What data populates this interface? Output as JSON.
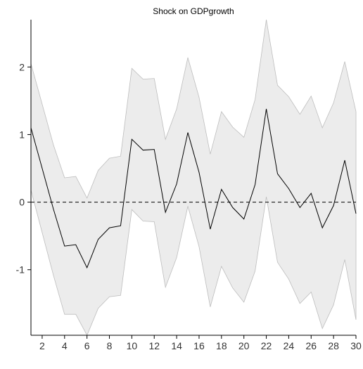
{
  "chart_data": {
    "type": "area",
    "title": "Shock on GDPgrowth",
    "xlabel": "",
    "ylabel": "",
    "xlim": [
      1,
      30
    ],
    "ylim": [
      -1.97,
      2.7
    ],
    "x_ticks": [
      2,
      4,
      6,
      8,
      10,
      12,
      14,
      16,
      18,
      20,
      22,
      24,
      26,
      28,
      30
    ],
    "y_ticks": [
      -1,
      0,
      1,
      2
    ],
    "grid": false,
    "reference_line": 0,
    "x": [
      1,
      2,
      3,
      4,
      5,
      6,
      7,
      8,
      9,
      10,
      11,
      12,
      13,
      14,
      15,
      16,
      17,
      18,
      19,
      20,
      21,
      22,
      23,
      24,
      25,
      26,
      27,
      28,
      29,
      30
    ],
    "series": [
      {
        "role": "estimate",
        "values": [
          1.1,
          0.5,
          -0.1,
          -0.65,
          -0.63,
          -0.97,
          -0.55,
          -0.38,
          -0.35,
          0.93,
          0.77,
          0.78,
          -0.15,
          0.27,
          1.03,
          0.44,
          -0.4,
          0.19,
          -0.08,
          -0.25,
          0.26,
          1.38,
          0.42,
          0.2,
          -0.08,
          0.13,
          -0.38,
          -0.05,
          0.62,
          -0.17
        ]
      },
      {
        "role": "upper",
        "values": [
          2.05,
          1.45,
          0.85,
          0.36,
          0.38,
          0.06,
          0.47,
          0.65,
          0.68,
          1.98,
          1.82,
          1.83,
          0.93,
          1.38,
          2.14,
          1.55,
          0.71,
          1.34,
          1.11,
          0.96,
          1.52,
          2.7,
          1.73,
          1.56,
          1.3,
          1.57,
          1.1,
          1.47,
          2.08,
          1.34
        ]
      },
      {
        "role": "lower",
        "values": [
          0.18,
          -0.45,
          -1.08,
          -1.66,
          -1.66,
          -1.97,
          -1.57,
          -1.4,
          -1.38,
          -0.11,
          -0.28,
          -0.29,
          -1.26,
          -0.82,
          -0.06,
          -0.66,
          -1.55,
          -0.95,
          -1.27,
          -1.48,
          -1.02,
          0.08,
          -0.89,
          -1.14,
          -1.5,
          -1.33,
          -1.87,
          -1.52,
          -0.85,
          -1.74
        ]
      }
    ]
  }
}
